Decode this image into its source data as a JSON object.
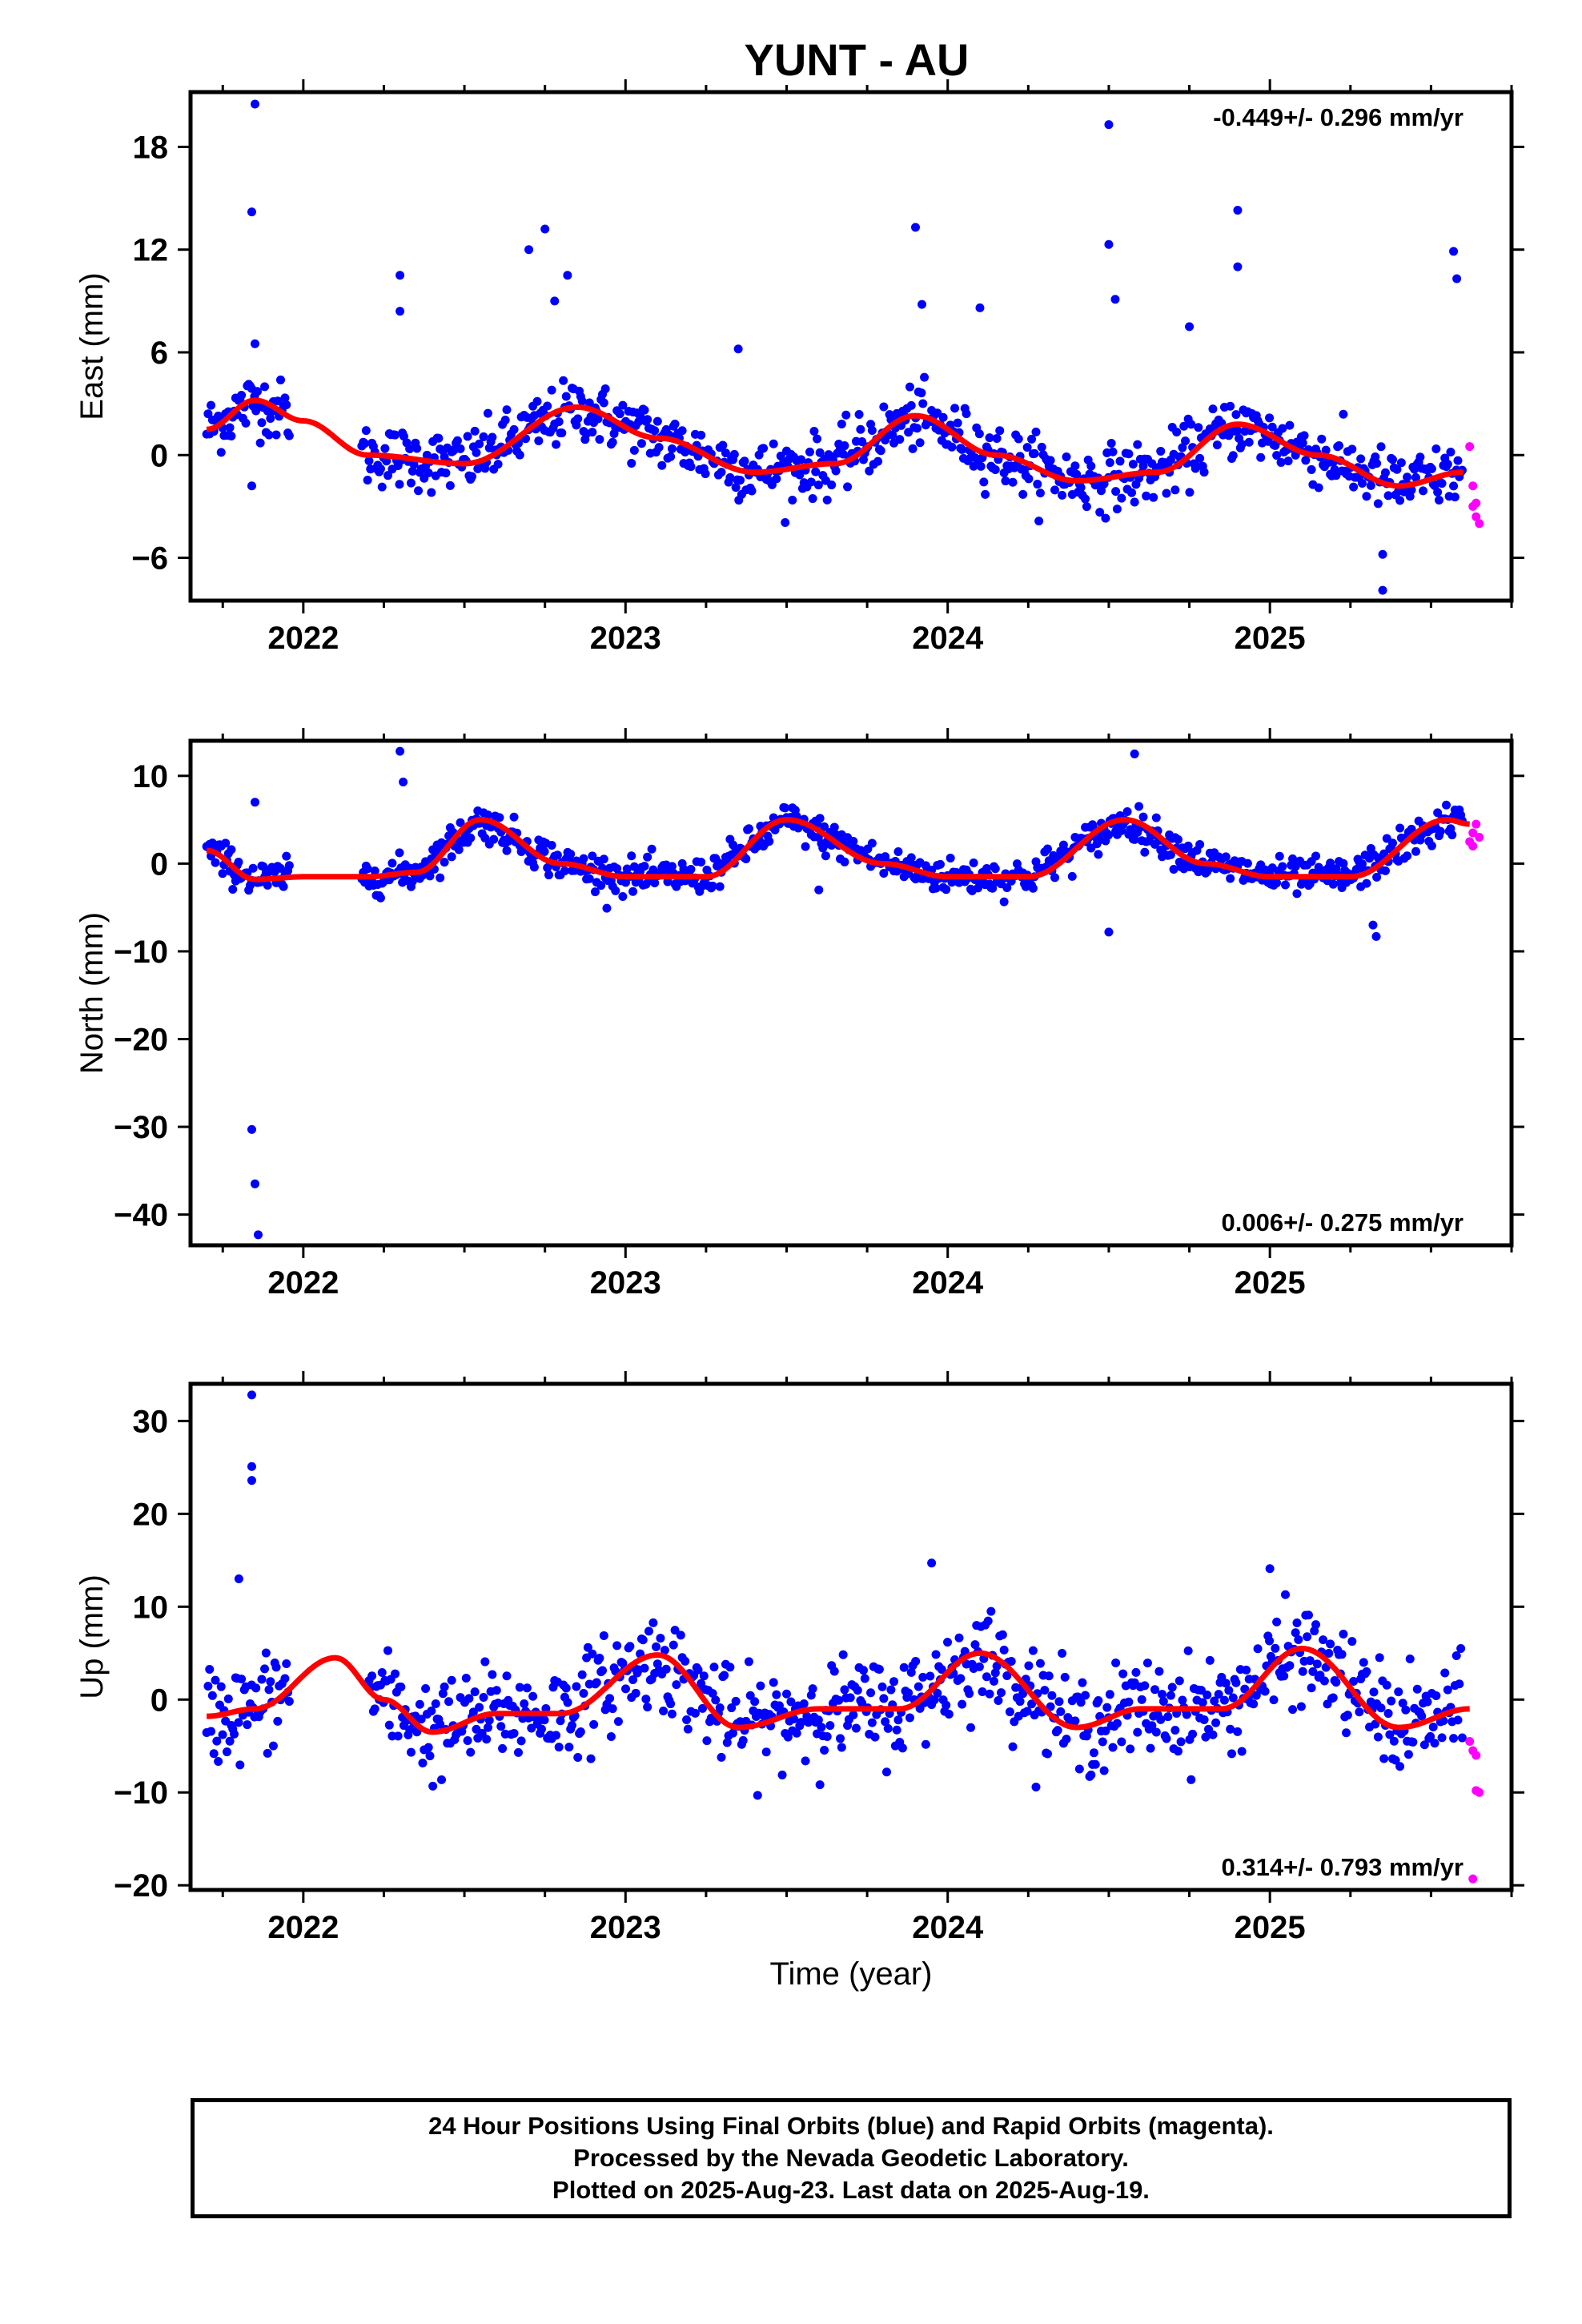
{
  "title": "YUNT - AU",
  "xlabel": "Time (year)",
  "x_tick_labels": [
    "2022",
    "2023",
    "2024",
    "2025"
  ],
  "colors": {
    "final": "#0000ff",
    "rapid": "#ff00ff",
    "model": "#ff0000"
  },
  "footer": {
    "line1": "24 Hour Positions Using Final Orbits (blue) and Rapid Orbits (magenta).",
    "line2": "Processed by the Nevada Geodetic Laboratory.",
    "line3": "Plotted on 2025-Aug-23. Last data on 2025-Aug-19."
  },
  "chart_data": [
    {
      "type": "scatter",
      "ylabel": "East (mm)",
      "rate": "-0.449+/- 0.296 mm/yr",
      "rate_position": "top-right",
      "xlim": [
        2021.65,
        2025.75
      ],
      "ylim": [
        -8.5,
        21.2
      ],
      "yticks": [
        -6,
        0,
        6,
        12,
        18
      ],
      "model_curve": {
        "name": "model",
        "x": [
          2021.7,
          2021.85,
          2022.0,
          2022.2,
          2022.5,
          2022.85,
          2023.1,
          2023.4,
          2023.65,
          2023.9,
          2024.15,
          2024.4,
          2024.65,
          2024.9,
          2025.15,
          2025.4,
          2025.6
        ],
        "y": [
          1.5,
          3.2,
          2.0,
          0.0,
          -0.5,
          2.8,
          1.0,
          -1.0,
          -0.5,
          2.3,
          0.0,
          -1.5,
          -1.0,
          1.8,
          0.0,
          -1.8,
          -1.0
        ]
      },
      "outliers": {
        "x": [
          2021.85,
          2021.84,
          2021.85,
          2021.84,
          2022.3,
          2022.3,
          2022.7,
          2022.75,
          2022.78,
          2022.82,
          2023.35,
          2023.9,
          2023.92,
          2024.1,
          2024.5,
          2024.5,
          2024.52,
          2024.75,
          2024.9,
          2024.9,
          2025.35,
          2025.35,
          2025.57,
          2025.58
        ],
        "y": [
          20.5,
          14.2,
          6.5,
          -1.8,
          10.5,
          8.4,
          12.0,
          13.2,
          9.0,
          10.5,
          6.2,
          13.3,
          8.8,
          8.6,
          19.3,
          12.3,
          9.1,
          7.5,
          14.3,
          11.0,
          -5.8,
          -7.9,
          11.9,
          10.3
        ]
      },
      "rapid": {
        "x": [
          2025.62,
          2025.63,
          2025.64,
          2025.64,
          2025.65,
          2025.63
        ],
        "y": [
          0.5,
          -1.8,
          -2.8,
          -3.6,
          -4.0,
          -3.0
        ]
      }
    },
    {
      "type": "scatter",
      "ylabel": "North (mm)",
      "rate": "0.006+/- 0.275 mm/yr",
      "rate_position": "bottom-right",
      "xlim": [
        2021.65,
        2025.75
      ],
      "ylim": [
        -43.5,
        14.0
      ],
      "yticks": [
        -40,
        -30,
        -20,
        -10,
        0,
        10
      ],
      "model_curve": {
        "name": "model",
        "x": [
          2021.7,
          2021.85,
          2022.0,
          2022.2,
          2022.35,
          2022.55,
          2022.8,
          2023.0,
          2023.25,
          2023.5,
          2023.8,
          2024.0,
          2024.25,
          2024.55,
          2024.8,
          2025.0,
          2025.25,
          2025.55,
          2025.62
        ],
        "y": [
          1.5,
          -1.8,
          -1.5,
          -1.5,
          -1.0,
          5.0,
          0.0,
          -1.5,
          -1.5,
          5.0,
          0.0,
          -1.5,
          -1.5,
          5.0,
          0.0,
          -1.5,
          -1.5,
          5.0,
          4.5
        ]
      },
      "outliers": {
        "x": [
          2021.85,
          2021.84,
          2021.85,
          2021.86,
          2022.3,
          2022.31,
          2023.6,
          2024.5,
          2024.58,
          2025.32,
          2025.33
        ],
        "y": [
          7.0,
          -30.3,
          -36.5,
          -42.3,
          12.8,
          9.3,
          -3.0,
          -7.8,
          12.5,
          -7.0,
          -8.3
        ]
      },
      "rapid": {
        "x": [
          2025.62,
          2025.63,
          2025.64,
          2025.65,
          2025.63
        ],
        "y": [
          2.5,
          3.5,
          4.5,
          3.0,
          2.0
        ]
      }
    },
    {
      "type": "scatter",
      "ylabel": "Up (mm)",
      "rate": "0.314+/- 0.793 mm/yr",
      "rate_position": "bottom-right",
      "xlim": [
        2021.65,
        2025.75
      ],
      "ylim": [
        -20.5,
        34.0
      ],
      "yticks": [
        -20,
        -10,
        0,
        10,
        20,
        30
      ],
      "model_curve": {
        "name": "model",
        "x": [
          2021.7,
          2021.85,
          2022.1,
          2022.25,
          2022.4,
          2022.6,
          2022.8,
          2023.1,
          2023.35,
          2023.6,
          2023.85,
          2024.1,
          2024.4,
          2024.6,
          2024.85,
          2025.1,
          2025.4,
          2025.62
        ],
        "y": [
          -1.8,
          -1.0,
          4.5,
          0.0,
          -3.5,
          -1.5,
          -1.5,
          4.8,
          -3.0,
          -1.0,
          -1.0,
          5.0,
          -3.0,
          -1.0,
          -1.0,
          5.5,
          -3.0,
          -1.0
        ]
      },
      "outliers": {
        "x": [
          2021.84,
          2021.84,
          2021.84,
          2021.8,
          2023.95,
          2025.0
        ],
        "y": [
          32.8,
          25.1,
          23.6,
          13.0,
          14.7,
          14.1
        ]
      },
      "rapid": {
        "x": [
          2025.62,
          2025.63,
          2025.64,
          2025.64,
          2025.65,
          2025.63
        ],
        "y": [
          -4.5,
          -5.5,
          -6.0,
          -9.8,
          -10.0,
          -19.3
        ]
      }
    }
  ]
}
